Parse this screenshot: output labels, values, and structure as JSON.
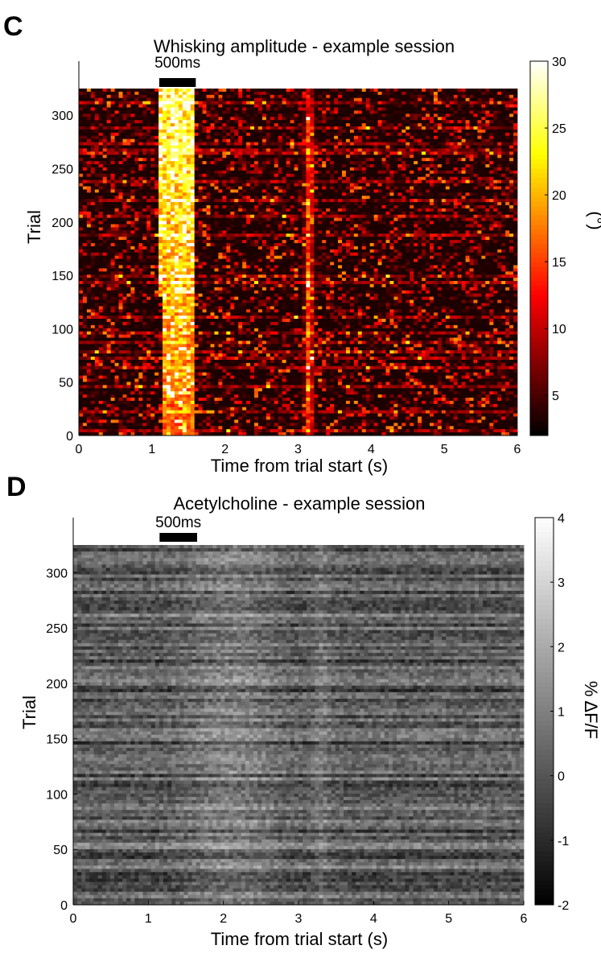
{
  "panels": {
    "c_letter": "C",
    "d_letter": "D"
  },
  "chart_data": [
    {
      "type": "heatmap",
      "title": "Whisking amplitude - example session",
      "xlabel": "Time from trial start (s)",
      "ylabel": "Trial",
      "colorbar_label": "(°)",
      "xlim": [
        0,
        6
      ],
      "ylim": [
        0,
        325
      ],
      "x_ticks": [
        0,
        1,
        2,
        3,
        4,
        5,
        6
      ],
      "y_ticks": [
        0,
        50,
        100,
        150,
        200,
        250,
        300
      ],
      "colorbar_range": [
        2,
        30
      ],
      "colorbar_ticks": [
        5,
        10,
        15,
        20,
        25,
        30
      ],
      "colormap": "hot",
      "scale_bar": {
        "label": "500ms",
        "start_s": 1.1,
        "end_s": 1.6
      },
      "n_trials": 325,
      "features": [
        {
          "description": "strong whisking band",
          "start_s": 1.15,
          "end_s": 1.6,
          "peak_value": 30
        },
        {
          "description": "thin vertical response line",
          "time_s": 3.15,
          "peak_value": 18
        }
      ]
    },
    {
      "type": "heatmap",
      "title": "Acetylcholine - example session",
      "xlabel": "Time from trial start (s)",
      "ylabel": "Trial",
      "colorbar_label": "% ΔF/F",
      "xlim": [
        0,
        6
      ],
      "ylim": [
        0,
        325
      ],
      "x_ticks": [
        0,
        1,
        2,
        3,
        4,
        5,
        6
      ],
      "y_ticks": [
        0,
        50,
        100,
        150,
        200,
        250,
        300
      ],
      "colorbar_range": [
        -2,
        4
      ],
      "colorbar_ticks": [
        -2,
        -1,
        0,
        1,
        2,
        3,
        4
      ],
      "colormap": "gray",
      "scale_bar": {
        "label": "500ms",
        "start_s": 1.15,
        "end_s": 1.65
      },
      "n_trials": 325,
      "features": [
        {
          "description": "brighter response band",
          "start_s": 1.3,
          "end_s": 2.9,
          "peak_value": 2.5
        },
        {
          "description": "vertical response line",
          "time_s": 3.3,
          "peak_value": 2
        }
      ]
    }
  ]
}
